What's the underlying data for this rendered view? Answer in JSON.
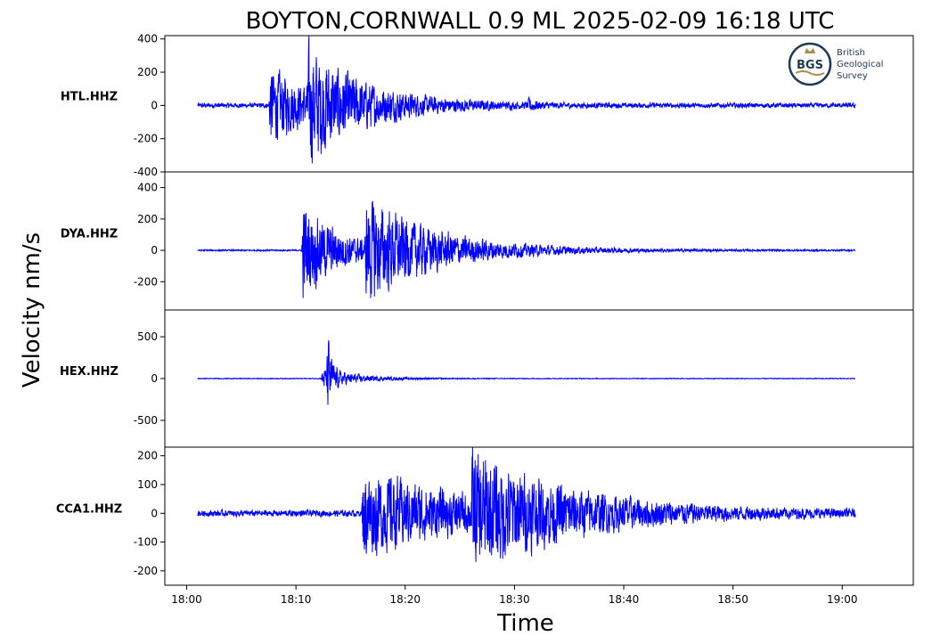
{
  "chart_data": {
    "type": "line",
    "title": "BOYTON,CORNWALL 0.9 ML   2025-02-09 16:18 UTC",
    "xlabel": "Time",
    "ylabel": "Velocity nm/s",
    "x_ticks": [
      "18:00",
      "18:10",
      "18:20",
      "18:30",
      "18:40",
      "18:50",
      "19:00"
    ],
    "x_tick_minutes": [
      0,
      10,
      20,
      30,
      40,
      50,
      60
    ],
    "xlim_minutes": [
      -2,
      66.5
    ],
    "trace_minutes": [
      1,
      61.2
    ],
    "line_color": "#0000ff",
    "logo": {
      "abbr": "BGS",
      "lines": [
        "British",
        "Geological",
        "Survey"
      ]
    },
    "panels": [
      {
        "station": "HTL.HHZ",
        "ylim": [
          -400,
          420
        ],
        "yticks": [
          400,
          200,
          0,
          -200,
          -400
        ],
        "noise": 18,
        "events": [
          {
            "t": 7.5,
            "peak": 300,
            "decay": 4.5
          },
          {
            "t": 11.0,
            "peak": 340,
            "decay": 5.5
          },
          {
            "t": 31.2,
            "peak": 55,
            "decay": 0.6
          }
        ]
      },
      {
        "station": "DYA.HHZ",
        "ylim": [
          -380,
          500
        ],
        "yticks": [
          400,
          200,
          0,
          -200
        ],
        "noise": 6,
        "events": [
          {
            "t": 10.5,
            "peak": 420,
            "decay": 3.5
          },
          {
            "t": 16.3,
            "peak": 390,
            "decay": 7.0
          }
        ]
      },
      {
        "station": "HEX.HHZ",
        "ylim": [
          -820,
          820
        ],
        "yticks": [
          500,
          0,
          -500
        ],
        "noise": 6,
        "events": [
          {
            "t": 12.3,
            "peak": 180,
            "decay": 3.0
          },
          {
            "t": 12.8,
            "peak": 760,
            "decay": 0.35
          }
        ]
      },
      {
        "station": "CCA1.HHZ",
        "ylim": [
          -250,
          230
        ],
        "yticks": [
          200,
          100,
          0,
          -100,
          -200
        ],
        "noise": 14,
        "events": [
          {
            "t": 16.0,
            "peak": 200,
            "decay": 10.0
          },
          {
            "t": 26.0,
            "peak": 210,
            "decay": 9.0
          }
        ]
      }
    ]
  }
}
